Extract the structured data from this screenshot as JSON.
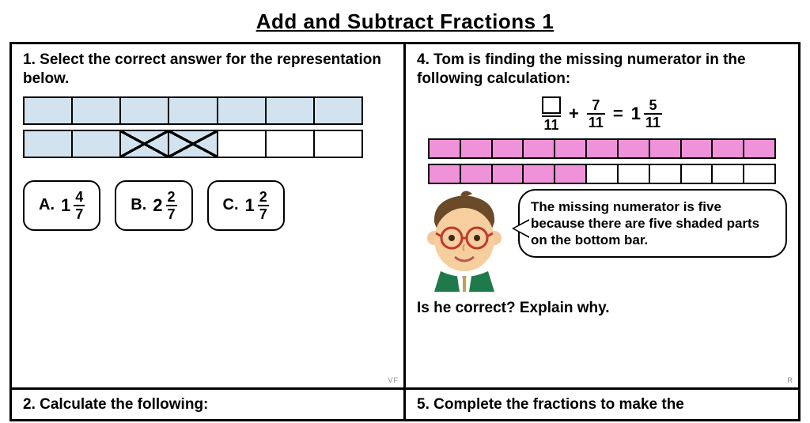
{
  "title": "Add and Subtract Fractions  1",
  "colors": {
    "blue_fill": "#d2e3ef",
    "pink_fill": "#f092d9",
    "border": "#000000",
    "bg": "#ffffff"
  },
  "q1": {
    "number": "1.",
    "prompt": "Select the correct answer for the representation below.",
    "bar1": {
      "segments": 7,
      "shaded": [
        true,
        true,
        true,
        true,
        true,
        true,
        true
      ],
      "crossed": [
        false,
        false,
        false,
        false,
        false,
        false,
        false
      ],
      "fill": "#d2e3ef"
    },
    "bar2": {
      "segments": 7,
      "shaded": [
        true,
        true,
        true,
        true,
        false,
        false,
        false
      ],
      "crossed": [
        false,
        false,
        true,
        true,
        false,
        false,
        false
      ],
      "fill": "#d2e3ef"
    },
    "options": [
      {
        "letter": "A.",
        "whole": "1",
        "num": "4",
        "den": "7"
      },
      {
        "letter": "B.",
        "whole": "2",
        "num": "2",
        "den": "7"
      },
      {
        "letter": "C.",
        "whole": "1",
        "num": "2",
        "den": "7"
      }
    ],
    "corner": "VF"
  },
  "q4": {
    "number": "4.",
    "prompt": "Tom is finding the missing numerator in the following calculation:",
    "equation": {
      "left": {
        "num_box": true,
        "den": "11"
      },
      "plus": "+",
      "mid": {
        "num": "7",
        "den": "11"
      },
      "equals": "=",
      "right": {
        "whole": "1",
        "num": "5",
        "den": "11"
      }
    },
    "bar1": {
      "segments": 11,
      "shaded_count": 11,
      "fill": "#f092d9"
    },
    "bar2": {
      "segments": 11,
      "shaded_count": 5,
      "fill": "#f092d9"
    },
    "speech": "The missing numerator is five because there are five shaded parts on the bottom bar.",
    "followup": "Is he correct?  Explain why.",
    "corner": "R"
  },
  "q2": {
    "number": "2.",
    "prompt": "Calculate the following:"
  },
  "q5": {
    "number": "5.",
    "prompt": "Complete the fractions to make the"
  }
}
